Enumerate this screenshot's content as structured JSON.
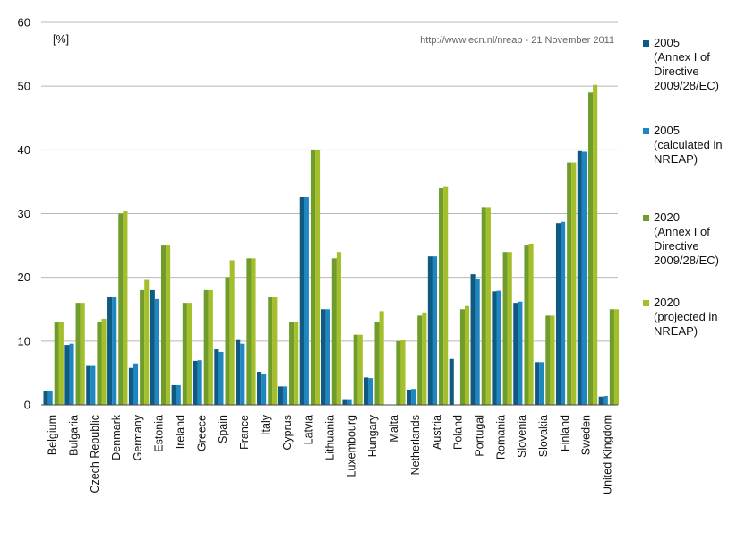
{
  "chart_data": {
    "type": "bar",
    "unit_label": "[%]",
    "source_note": "http://www.ecn.nl/nreap - 21 November 2011",
    "ylim": [
      0,
      60
    ],
    "yticks": [
      0,
      10,
      20,
      30,
      40,
      50,
      60
    ],
    "grid": true,
    "legend_position": "right",
    "categories": [
      "Belgium",
      "Bulgaria",
      "Czech Republic",
      "Denmark",
      "Germany",
      "Estonia",
      "Ireland",
      "Greece",
      "Spain",
      "France",
      "Italy",
      "Cyprus",
      "Latvia",
      "Lithuania",
      "Luxembourg",
      "Hungary",
      "Malta",
      "Netherlands",
      "Austria",
      "Poland",
      "Portugal",
      "Romania",
      "Slovenia",
      "Slovakia",
      "Finland",
      "Sweden",
      "United Kingdom"
    ],
    "series": [
      {
        "name": "2005 (Annex I of Directive 2009/28/EC)",
        "name_lines": [
          "2005",
          "(Annex I of",
          "Directive",
          "2009/28/EC)"
        ],
        "color": "#0f5a82",
        "values": [
          2.2,
          9.4,
          6.1,
          17.0,
          5.8,
          18.0,
          3.1,
          6.9,
          8.7,
          10.3,
          5.2,
          2.9,
          32.6,
          15.0,
          0.9,
          4.3,
          0.0,
          2.4,
          23.3,
          7.2,
          20.5,
          17.8,
          16.0,
          6.7,
          28.5,
          39.8,
          1.3
        ]
      },
      {
        "name": "2005 (calculated in NREAP)",
        "name_lines": [
          "2005",
          "(calculated in",
          "NREAP)"
        ],
        "color": "#1f86bf",
        "values": [
          2.2,
          9.6,
          6.1,
          17.0,
          6.5,
          16.6,
          3.1,
          7.0,
          8.3,
          9.6,
          4.9,
          2.9,
          32.6,
          15.0,
          0.9,
          4.2,
          0.0,
          2.5,
          23.3,
          0.0,
          19.8,
          17.9,
          16.2,
          6.7,
          28.7,
          39.7,
          1.4
        ]
      },
      {
        "name": "2020 (Annex I of Directive 2009/28/EC)",
        "name_lines": [
          "2020",
          "(Annex I of",
          "Directive",
          "2009/28/EC)"
        ],
        "color": "#6f9c2a",
        "values": [
          13.0,
          16.0,
          13.0,
          30.0,
          18.0,
          25.0,
          16.0,
          18.0,
          20.0,
          23.0,
          17.0,
          13.0,
          40.0,
          23.0,
          11.0,
          13.0,
          10.0,
          14.0,
          34.0,
          15.0,
          31.0,
          24.0,
          25.0,
          14.0,
          38.0,
          49.0,
          15.0
        ]
      },
      {
        "name": "2020 (projected in NREAP)",
        "name_lines": [
          "2020",
          "(projected in",
          "NREAP)"
        ],
        "color": "#a5bf2c",
        "values": [
          13.0,
          16.0,
          13.5,
          30.4,
          19.6,
          25.0,
          16.0,
          18.0,
          22.7,
          23.0,
          17.0,
          13.0,
          40.0,
          24.0,
          11.0,
          14.7,
          10.2,
          14.5,
          34.2,
          15.5,
          31.0,
          24.0,
          25.3,
          14.0,
          38.0,
          50.2,
          15.0
        ]
      }
    ]
  }
}
